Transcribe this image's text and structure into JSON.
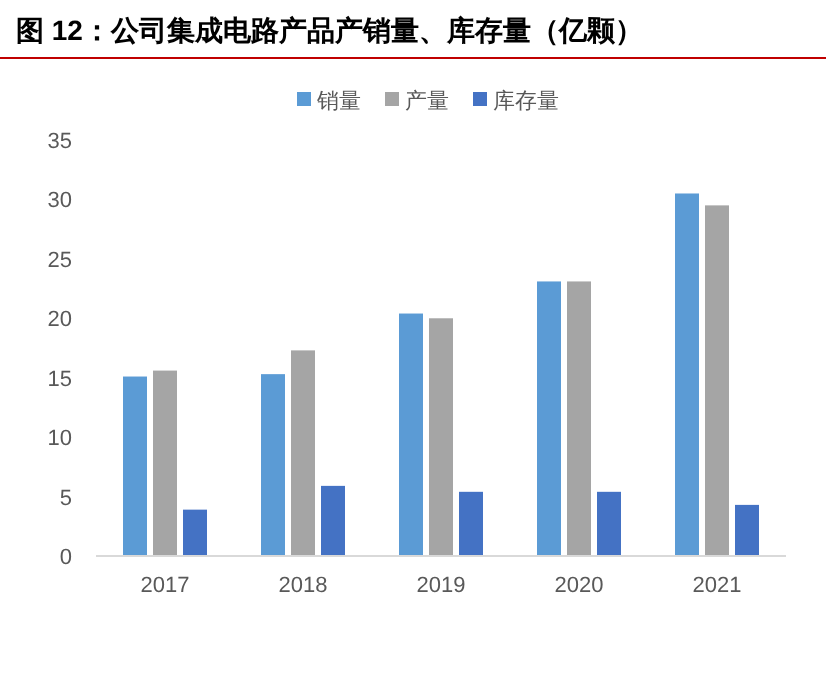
{
  "chart_data": {
    "type": "bar",
    "title": "图 12：公司集成电路产品产销量、库存量（亿颗）",
    "categories": [
      "2017",
      "2018",
      "2019",
      "2020",
      "2021"
    ],
    "series": [
      {
        "name": "销量",
        "color": "#5b9bd5",
        "values": [
          15.1,
          15.3,
          20.4,
          23.1,
          30.5
        ]
      },
      {
        "name": "产量",
        "color": "#a5a5a5",
        "values": [
          15.6,
          17.3,
          20.0,
          23.1,
          29.5
        ]
      },
      {
        "name": "库存量",
        "color": "#4472c4",
        "values": [
          3.9,
          5.9,
          5.4,
          5.4,
          4.3
        ]
      }
    ],
    "ylim": [
      0,
      35
    ],
    "yticks": [
      0,
      5,
      10,
      15,
      20,
      25,
      30,
      35
    ],
    "grid": false,
    "legend": "top"
  }
}
